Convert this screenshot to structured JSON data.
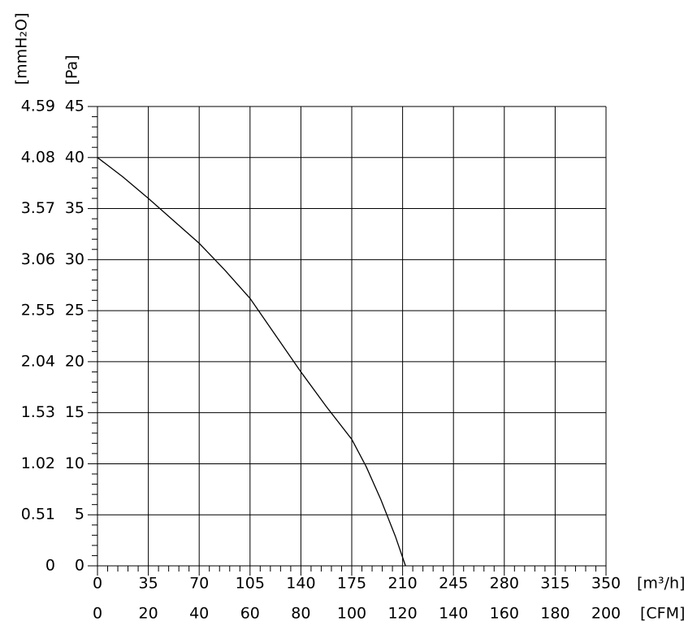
{
  "chart_data": {
    "type": "line",
    "x_label": "[m³/h]",
    "x2_label": "[CFM]",
    "y_label": "[Pa]",
    "y2_label": "[mmH₂O]",
    "x": [
      0,
      17.5,
      35,
      52.5,
      70,
      87.5,
      105,
      122.5,
      140,
      157.5,
      175,
      185,
      195,
      205,
      212
    ],
    "series": [
      {
        "color": "#000000",
        "values": [
          40,
          38.1,
          36,
          33.8,
          31.6,
          29.0,
          26.2,
          22.6,
          19,
          15.6,
          12.4,
          9.7,
          6.5,
          2.9,
          0
        ]
      }
    ],
    "xlim": [
      0,
      350
    ],
    "xticks": [
      0,
      35,
      70,
      105,
      140,
      175,
      210,
      245,
      280,
      315,
      350
    ],
    "x2lim": [
      0,
      200
    ],
    "x2ticks": [
      0,
      20,
      40,
      60,
      80,
      100,
      120,
      140,
      160,
      180,
      200
    ],
    "ylim": [
      0,
      45
    ],
    "yticks": [
      0,
      5,
      10,
      15,
      20,
      25,
      30,
      35,
      40,
      45
    ],
    "y2lim": [
      0,
      4.59
    ],
    "y2ticks": [
      0,
      0.51,
      1.02,
      1.53,
      2.04,
      2.55,
      3.06,
      3.57,
      4.08,
      4.59
    ],
    "grid": true
  }
}
